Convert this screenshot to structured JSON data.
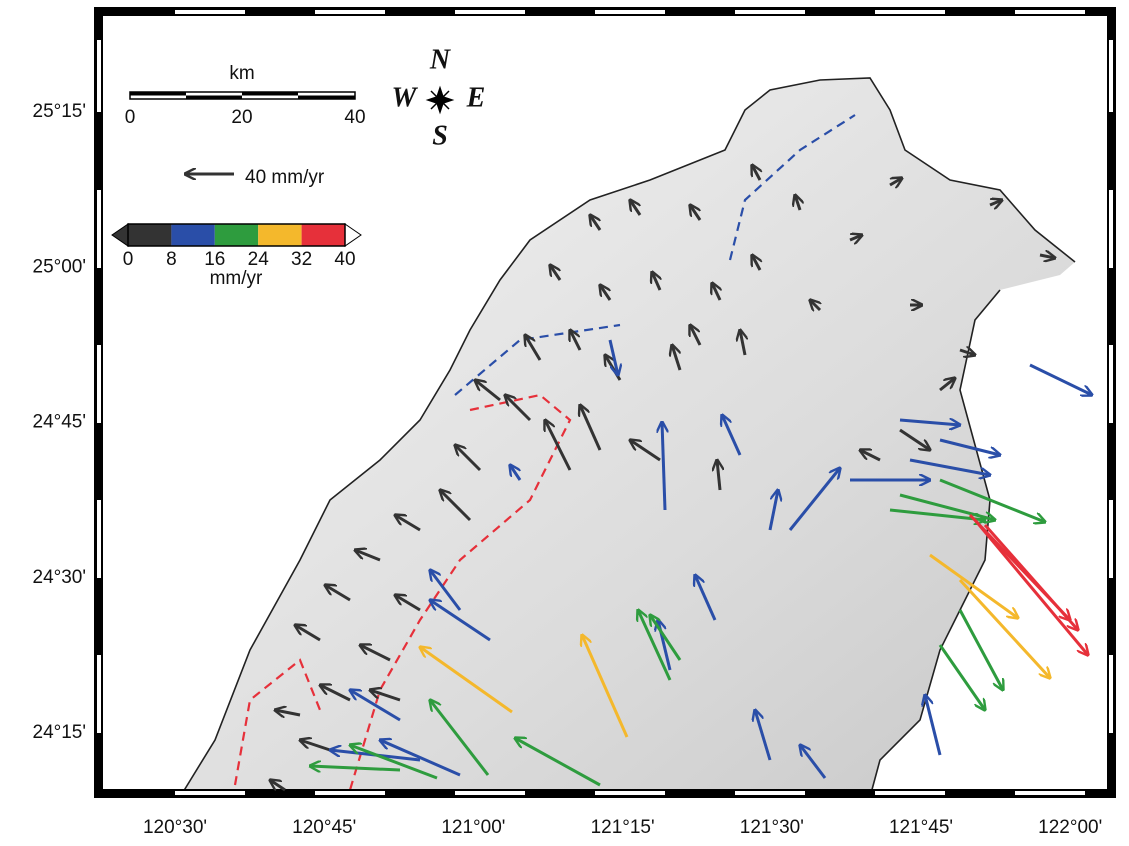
{
  "scale_bar": {
    "unit": "km",
    "ticks": [
      "0",
      "20",
      "40"
    ]
  },
  "velocity_reference": {
    "label": "40 mm/yr"
  },
  "compass": {
    "north": "N",
    "south": "S",
    "east": "E",
    "west": "W"
  },
  "color_scale": {
    "ticks": [
      "0",
      "8",
      "16",
      "24",
      "32",
      "40"
    ],
    "unit": "mm/yr",
    "colors": [
      "#333333",
      "#2a4ea8",
      "#2e9c3e",
      "#f4b82c",
      "#e6303a"
    ]
  },
  "axes": {
    "x_labels": [
      "120°30'",
      "120°45'",
      "121°00'",
      "121°15'",
      "121°30'",
      "121°45'",
      "122°00'"
    ],
    "y_labels": [
      "25°15'",
      "25°00'",
      "24°45'",
      "24°30'",
      "24°15'"
    ]
  }
}
